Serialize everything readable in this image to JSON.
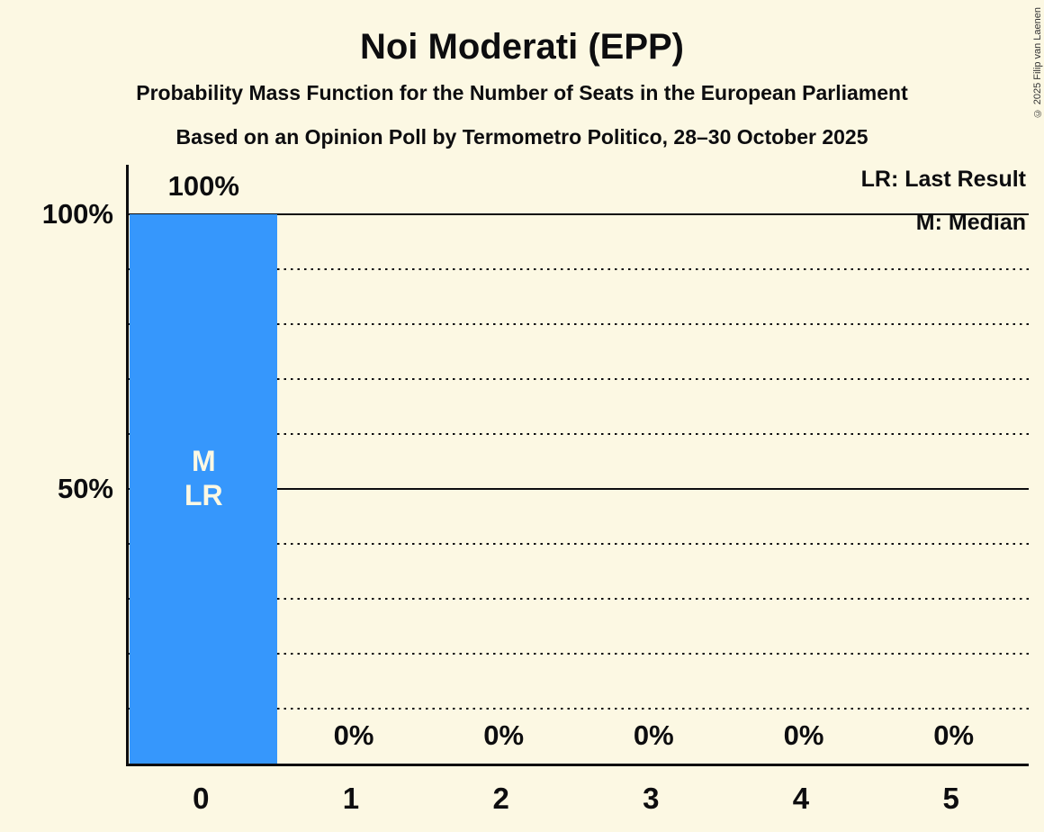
{
  "page": {
    "title": "Noi Moderati (EPP)",
    "subtitle_line1": "Probability Mass Function for the Number of Seats in the European Parliament",
    "subtitle_line2": "Based on an Opinion Poll by Termometro Politico, 28–30 October 2025",
    "copyright": "© 2025 Filip van Laenen"
  },
  "legend": {
    "last_result": "LR: Last Result",
    "median": "M: Median"
  },
  "colors": {
    "background": "#FCF8E3",
    "bar": "#3697FC",
    "text": "#0D0D0F",
    "bar_inner_label": "#FCF8E3"
  },
  "chart_data": {
    "type": "bar",
    "title": "Noi Moderati (EPP)",
    "categories": [
      "0",
      "1",
      "2",
      "3",
      "4",
      "5"
    ],
    "values": [
      100,
      0,
      0,
      0,
      0,
      0
    ],
    "value_labels": [
      "100%",
      "0%",
      "0%",
      "0%",
      "0%",
      "0%"
    ],
    "xlabel": "",
    "ylabel": "",
    "ylim": [
      0,
      100
    ],
    "yticks": [
      {
        "value": 100,
        "label": "100%"
      },
      {
        "value": 50,
        "label": "50%"
      }
    ],
    "gridlines_solid": [
      100,
      50
    ],
    "gridlines_dotted": [
      90,
      80,
      70,
      60,
      40,
      30,
      20,
      10
    ],
    "annotations": [
      {
        "category_index": 0,
        "lines": [
          "M",
          "LR"
        ]
      }
    ],
    "legend_position": "top-right",
    "grid": true
  }
}
